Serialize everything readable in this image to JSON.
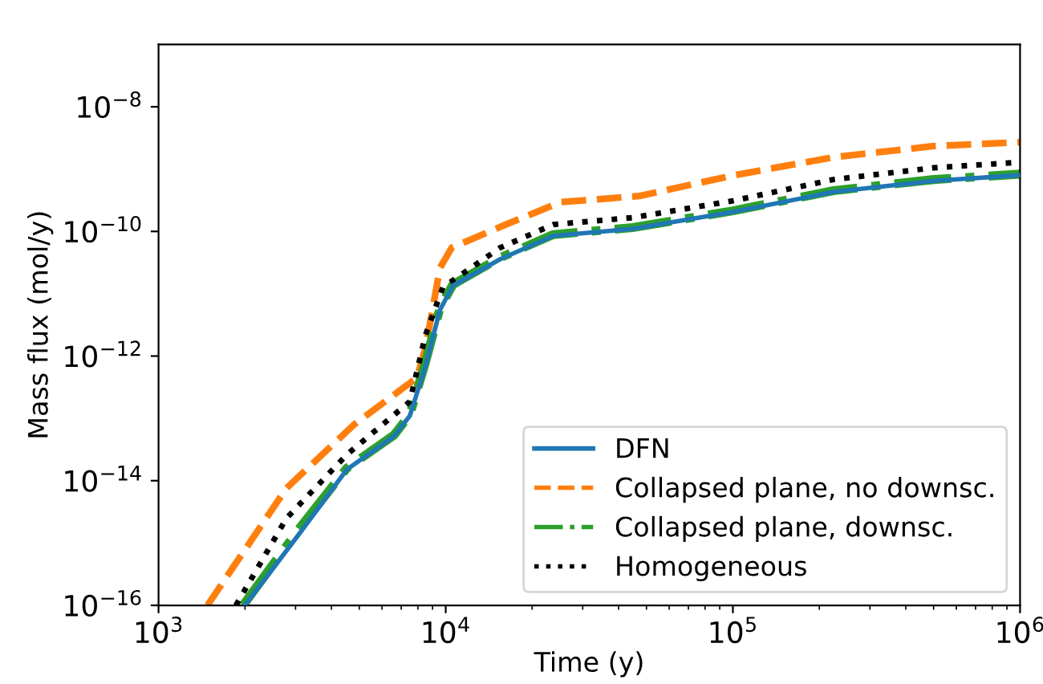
{
  "chart_data": {
    "type": "line",
    "xlabel": "Time (y)",
    "ylabel": "Mass flux (mol/y)",
    "log": "xy",
    "grid": false,
    "legend": "bottom right",
    "marker": "none",
    "xlim": [
      1000,
      1000000
    ],
    "ylim": [
      1e-16,
      1e-07
    ],
    "xticks": [
      {
        "value": 1000,
        "label": "10$^{3}$"
      },
      {
        "value": 10000,
        "label": "10$^{4}$"
      },
      {
        "value": 100000,
        "label": "10$^{5}$"
      },
      {
        "value": 1000000,
        "label": "10$^{6}$"
      }
    ],
    "yticks": [
      {
        "value": 1e-16,
        "label": "10$^{−16}$"
      },
      {
        "value": 1e-14,
        "label": "10$^{−14}$"
      },
      {
        "value": 1e-12,
        "label": "10$^{−12}$"
      },
      {
        "value": 1e-10,
        "label": "10$^{−10}$"
      },
      {
        "value": 1e-08,
        "label": "10$^{−8}$"
      }
    ],
    "series": [
      {
        "name": "DFN",
        "color": "#1f77b4",
        "line_style": "solid",
        "x": [
          2000,
          3090,
          4520,
          6610,
          7500,
          8510,
          9550,
          10600,
          15500,
          23700,
          44700,
          100000,
          224000,
          501000,
          1000000
        ],
        "values": [
          1e-16,
          1.4e-15,
          1.5e-14,
          5.2e-14,
          1.1e-13,
          7e-13,
          5.5e-12,
          1.35e-11,
          3.6e-11,
          8.5e-11,
          1.1e-10,
          2.05e-10,
          4.3e-10,
          6.5e-10,
          8e-10
        ]
      },
      {
        "name": "Collapsed plane, no downsc.",
        "color": "#ff7f0e",
        "line_style": "dashed",
        "x": [
          1480,
          2790,
          4790,
          7940,
          8510,
          9550,
          10500,
          16200,
          25100,
          47300,
          100000,
          224000,
          501000,
          1000000
        ],
        "values": [
          1e-16,
          7.6e-15,
          7.9e-14,
          4.5e-13,
          1.35e-12,
          2.6e-11,
          5.5e-11,
          1.29e-10,
          2.95e-10,
          3.7e-10,
          7.9e-10,
          1.55e-09,
          2.34e-09,
          2.7e-09
        ]
      },
      {
        "name": "Collapsed plane, downsc.",
        "color": "#2ca02c",
        "line_style": "dashdot",
        "x": [
          1970,
          3090,
          4520,
          6610,
          7500,
          8510,
          9550,
          10600,
          15500,
          23700,
          44700,
          100000,
          224000,
          501000,
          1000000
        ],
        "values": [
          1e-16,
          1.7e-15,
          1.58e-14,
          5.4e-14,
          1.15e-13,
          8.1e-13,
          5.9e-12,
          1.41e-11,
          3.8e-11,
          8.9e-11,
          1.15e-10,
          2.14e-10,
          4.5e-10,
          6.8e-10,
          8.3e-10
        ]
      },
      {
        "name": "Homogeneous",
        "color": "#000000",
        "line_style": "dotted",
        "x": [
          1860,
          2790,
          4520,
          7500,
          8510,
          9770,
          15500,
          23700,
          44700,
          100000,
          224000,
          501000,
          1000000
        ],
        "values": [
          1e-16,
          2.5e-15,
          2.6e-14,
          1.86e-13,
          2.2e-12,
          1.26e-11,
          5.5e-11,
          1.29e-10,
          1.66e-10,
          3.1e-10,
          6.8e-10,
          1.05e-09,
          1.29e-09
        ]
      }
    ]
  }
}
